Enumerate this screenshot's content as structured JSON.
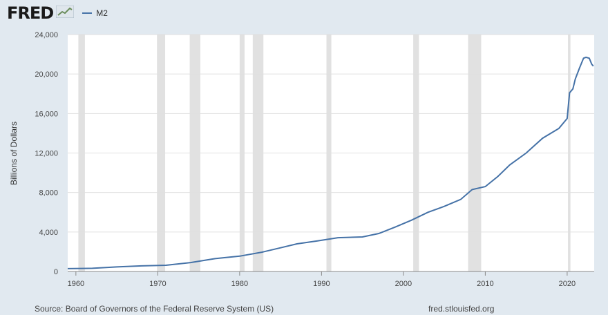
{
  "brand": {
    "logo_text": "FRED"
  },
  "chart_data": {
    "type": "line",
    "title": "",
    "xlabel": "",
    "ylabel": "Billions of Dollars",
    "xlim": [
      1959.0,
      2023.3
    ],
    "ylim": [
      0,
      24000
    ],
    "yticks": [
      0,
      4000,
      8000,
      12000,
      16000,
      20000,
      24000
    ],
    "ytick_labels": [
      "0",
      "4,000",
      "8,000",
      "12,000",
      "16,000",
      "20,000",
      "24,000"
    ],
    "xticks": [
      1960,
      1970,
      1980,
      1990,
      2000,
      2010,
      2020
    ],
    "xtick_labels": [
      "1960",
      "1970",
      "1980",
      "1990",
      "2000",
      "2010",
      "2020"
    ],
    "grid": true,
    "legend": "top-left",
    "recessions": [
      [
        1960.3,
        1961.1
      ],
      [
        1969.9,
        1970.9
      ],
      [
        1973.9,
        1975.2
      ],
      [
        1980.0,
        1980.6
      ],
      [
        1981.6,
        1982.9
      ],
      [
        1990.6,
        1991.2
      ],
      [
        2001.2,
        2001.9
      ],
      [
        2007.9,
        2009.5
      ],
      [
        2020.1,
        2020.4
      ]
    ],
    "series": [
      {
        "name": "M2",
        "color": "#4572a7",
        "x": [
          1959,
          1962,
          1965,
          1968,
          1971,
          1974,
          1977,
          1980,
          1982.7,
          1985,
          1987,
          1989.5,
          1992,
          1995,
          1997,
          1999,
          2001,
          2003,
          2005,
          2007,
          2008.4,
          2010,
          2011.5,
          2013,
          2015,
          2017,
          2019,
          2020.0,
          2020.3,
          2020.7,
          2021,
          2021.5,
          2022,
          2022.3,
          2022.7,
          2023.0,
          2023.2
        ],
        "y": [
          290,
          320,
          460,
          570,
          630,
          900,
          1300,
          1550,
          1950,
          2400,
          2800,
          3100,
          3420,
          3500,
          3850,
          4500,
          5200,
          6000,
          6600,
          7300,
          8300,
          8600,
          9600,
          10800,
          12000,
          13500,
          14500,
          15500,
          18100,
          18500,
          19500,
          20600,
          21600,
          21700,
          21600,
          21000,
          20800
        ]
      }
    ]
  },
  "footer": {
    "source": "Source: Board of Governors of the Federal Reserve System (US)",
    "site": "fred.stlouisfed.org"
  }
}
